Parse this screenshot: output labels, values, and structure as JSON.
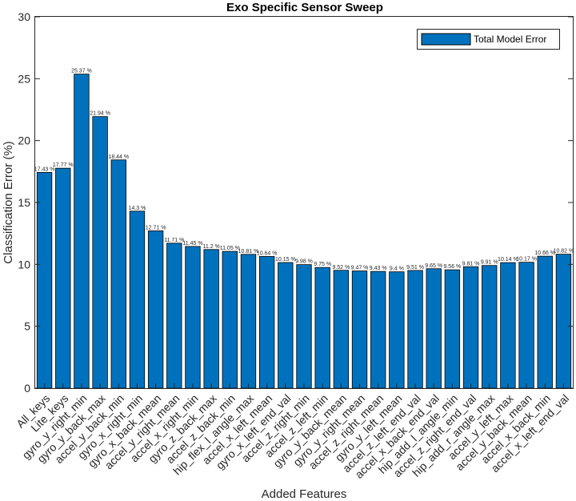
{
  "chart_data": {
    "type": "bar",
    "title": "Exo Specific Sensor Sweep",
    "xlabel": "Added Features",
    "ylabel": "Classification Error (%)",
    "ylim": [
      0,
      30
    ],
    "yticks": [
      0,
      5,
      10,
      15,
      20,
      25,
      30
    ],
    "grid": false,
    "legend_position": "top-right",
    "bar_color": "#0072BD",
    "series": [
      {
        "name": "Total Model Error",
        "values": [
          17.43,
          17.77,
          25.37,
          21.94,
          18.44,
          14.3,
          12.71,
          11.71,
          11.45,
          11.2,
          11.05,
          10.81,
          10.64,
          10.15,
          9.98,
          9.75,
          9.52,
          9.47,
          9.43,
          9.4,
          9.51,
          9.65,
          9.56,
          9.81,
          9.91,
          10.14,
          10.17,
          10.66,
          10.82
        ]
      }
    ],
    "categories": [
      "All_keys",
      "Lite_keys",
      "gyro_y_right_min",
      "gyro_y_back_max",
      "accel_y_back_min",
      "gyro_x_right_min",
      "gyro_x_back_mean",
      "accel_y_right_mean",
      "accel_x_right_min",
      "gyro_z_back_max",
      "accel_z_back_min",
      "hip_flex_l_angle_max",
      "accel_x_left_mean",
      "gyro_x_left_end_val",
      "accel_z_right_min",
      "accel_z_left_min",
      "gyro_y_back_mean",
      "gyro_y_right_mean",
      "accel_z_right_mean",
      "gyro_y_left_mean",
      "accel_z_left_end_val",
      "accel_x_back_end_val",
      "hip_add_l_angle_min",
      "accel_z_right_end_val",
      "hip_add_r_angle_max",
      "accel_y_left_max",
      "accel_y_back_mean",
      "accel_x_back_min",
      "accel_x_left_end_val"
    ],
    "data_labels": [
      "17.43 %",
      "17.77 %",
      "25.37 %",
      "21.94 %",
      "18.44 %",
      "14.3 %",
      "12.71 %",
      "11.71 %",
      "11.45 %",
      "11.2 %",
      "11.05 %",
      "10.81 %",
      "10.64 %",
      "10.15 %",
      "9.98 %",
      "9.75 %",
      "9.52 %",
      "9.47 %",
      "9.43 %",
      "9.4 %",
      "9.51 %",
      "9.65 %",
      "9.56 %",
      "9.81 %",
      "9.91 %",
      "10.14 %",
      "10.17 %",
      "10.66 %",
      "10.82 %"
    ]
  }
}
